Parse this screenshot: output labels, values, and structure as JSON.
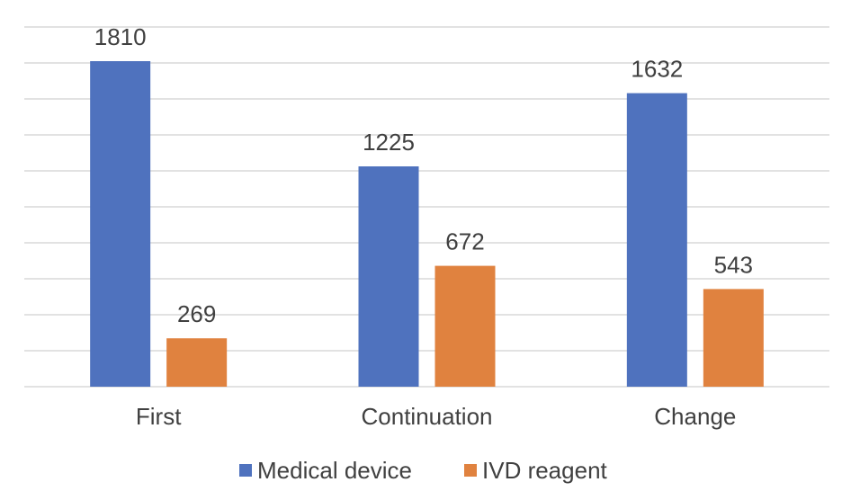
{
  "chart_data": {
    "type": "bar",
    "title": "",
    "xlabel": "",
    "ylabel": "",
    "categories": [
      "First",
      "Continuation",
      "Change"
    ],
    "series": [
      {
        "name": "Medical device",
        "values": [
          1810,
          1225,
          1632
        ],
        "color": "#4F72BE"
      },
      {
        "name": "IVD reagent",
        "values": [
          269,
          672,
          543
        ],
        "color": "#E0823F"
      }
    ],
    "ylim": [
      0,
      2000
    ],
    "y_gridline_step": 200,
    "grid": true,
    "y_tick_labels_shown": false,
    "legend_position": "bottom",
    "data_labels": true
  }
}
